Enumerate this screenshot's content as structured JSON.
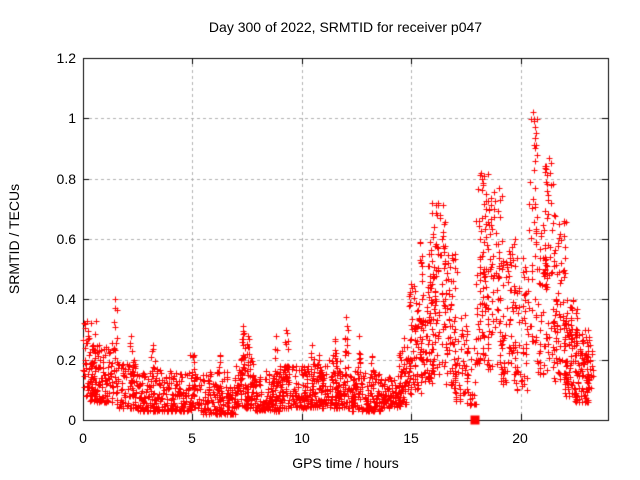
{
  "chart": {
    "title": "Day 300 of 2022, SRMTID for receiver p047",
    "xlabel": "GPS time / hours",
    "ylabel": "SRMTID / TECUs",
    "y_ticks": [
      {
        "value": 0,
        "label": "0"
      },
      {
        "value": 0.2,
        "label": "0.2"
      },
      {
        "value": 0.4,
        "label": "0.4"
      },
      {
        "value": 0.6,
        "label": "0.6"
      },
      {
        "value": 0.8,
        "label": "0.8"
      },
      {
        "value": 1,
        "label": "1"
      },
      {
        "value": 1.2,
        "label": "1.2"
      }
    ],
    "x_ticks": [
      {
        "value": 0,
        "label": "0"
      },
      {
        "value": 5,
        "label": "5"
      },
      {
        "value": 10,
        "label": "10"
      },
      {
        "value": 15,
        "label": "15"
      },
      {
        "value": 20,
        "label": "20"
      }
    ]
  },
  "chart_data": {
    "type": "scatter",
    "title": "Day 300 of 2022, SRMTID for receiver p047",
    "xlabel": "GPS time / hours",
    "ylabel": "SRMTID / TECUs",
    "xlim": [
      0,
      24
    ],
    "ylim": [
      0,
      1.2
    ],
    "x_tick_values": [
      0,
      5,
      10,
      15,
      20
    ],
    "y_tick_values": [
      0,
      0.2,
      0.4,
      0.6,
      0.8,
      1,
      1.2
    ],
    "grid": true,
    "grid_style": "dashed",
    "legend": "none",
    "marker": "plus",
    "marker_size": 7,
    "colors": {
      "marker": "#ff0000",
      "grid": "#b0b0b0",
      "axis": "#000000",
      "background": "#ffffff"
    },
    "time_marker": {
      "shape": "filled-square",
      "x": 17.9,
      "y": 0,
      "size": 9,
      "color": "#ff0000"
    },
    "seed": 300,
    "clusters_format": "[x_start_hour, x_end_hour, point_count, y_min, y_max, bias_exponent_toward_y_min]",
    "clusters": [
      [
        0.0,
        0.6,
        70,
        0.08,
        0.33,
        1.6
      ],
      [
        0.3,
        1.4,
        110,
        0.06,
        0.26,
        1.8
      ],
      [
        1.4,
        1.55,
        14,
        0.12,
        0.4,
        1.0
      ],
      [
        1.5,
        2.5,
        90,
        0.04,
        0.2,
        1.8
      ],
      [
        2.1,
        2.25,
        10,
        0.1,
        0.27,
        1.2
      ],
      [
        2.5,
        4.0,
        140,
        0.03,
        0.17,
        1.7
      ],
      [
        3.1,
        3.3,
        12,
        0.08,
        0.24,
        1.2
      ],
      [
        4.0,
        5.5,
        140,
        0.03,
        0.16,
        1.7
      ],
      [
        4.9,
        5.1,
        10,
        0.08,
        0.22,
        1.2
      ],
      [
        5.5,
        7.0,
        150,
        0.02,
        0.16,
        1.7
      ],
      [
        6.1,
        6.3,
        10,
        0.06,
        0.22,
        1.2
      ],
      [
        7.0,
        7.8,
        90,
        0.04,
        0.22,
        1.5
      ],
      [
        7.25,
        7.4,
        12,
        0.15,
        0.31,
        1.1
      ],
      [
        7.5,
        7.62,
        8,
        0.15,
        0.28,
        1.1
      ],
      [
        7.8,
        9.0,
        120,
        0.03,
        0.17,
        1.7
      ],
      [
        8.7,
        8.9,
        10,
        0.1,
        0.28,
        1.2
      ],
      [
        9.0,
        10.2,
        120,
        0.04,
        0.18,
        1.6
      ],
      [
        9.25,
        9.4,
        10,
        0.12,
        0.3,
        1.1
      ],
      [
        10.2,
        11.2,
        110,
        0.04,
        0.19,
        1.6
      ],
      [
        10.4,
        10.55,
        8,
        0.1,
        0.25,
        1.2
      ],
      [
        10.75,
        10.9,
        8,
        0.1,
        0.24,
        1.2
      ],
      [
        11.2,
        12.3,
        110,
        0.04,
        0.2,
        1.6
      ],
      [
        11.45,
        11.6,
        10,
        0.12,
        0.27,
        1.1
      ],
      [
        11.95,
        12.1,
        10,
        0.15,
        0.33,
        1.1
      ],
      [
        12.3,
        13.6,
        130,
        0.03,
        0.17,
        1.7
      ],
      [
        12.55,
        12.7,
        10,
        0.1,
        0.28,
        1.2
      ],
      [
        13.15,
        13.3,
        8,
        0.08,
        0.22,
        1.2
      ],
      [
        13.6,
        14.5,
        90,
        0.04,
        0.15,
        1.6
      ],
      [
        14.4,
        15.0,
        60,
        0.05,
        0.28,
        1.4
      ],
      [
        14.9,
        15.5,
        70,
        0.08,
        0.45,
        1.3
      ],
      [
        15.4,
        16.0,
        80,
        0.12,
        0.6,
        1.25
      ],
      [
        15.9,
        16.6,
        90,
        0.15,
        0.72,
        1.2
      ],
      [
        16.5,
        17.1,
        70,
        0.1,
        0.55,
        1.3
      ],
      [
        17.0,
        17.6,
        45,
        0.06,
        0.35,
        1.4
      ],
      [
        17.5,
        17.95,
        25,
        0.05,
        0.25,
        1.4
      ],
      [
        17.95,
        18.55,
        85,
        0.18,
        0.82,
        1.15
      ],
      [
        18.5,
        19.2,
        75,
        0.15,
        0.77,
        1.2
      ],
      [
        19.1,
        19.8,
        65,
        0.12,
        0.6,
        1.25
      ],
      [
        19.7,
        20.35,
        55,
        0.1,
        0.55,
        1.3
      ],
      [
        20.35,
        20.75,
        40,
        0.25,
        1.02,
        1.15
      ],
      [
        20.7,
        21.2,
        50,
        0.15,
        0.7,
        1.2
      ],
      [
        21.1,
        21.6,
        55,
        0.18,
        0.87,
        1.2
      ],
      [
        21.5,
        22.1,
        70,
        0.12,
        0.66,
        1.25
      ],
      [
        22.0,
        22.6,
        90,
        0.08,
        0.4,
        1.4
      ],
      [
        22.5,
        23.1,
        80,
        0.06,
        0.3,
        1.4
      ],
      [
        23.0,
        23.35,
        30,
        0.08,
        0.28,
        1.3
      ]
    ],
    "peak_points": [
      [
        0.05,
        0.32
      ],
      [
        1.45,
        0.4
      ],
      [
        1.45,
        0.37
      ],
      [
        2.2,
        0.28
      ],
      [
        3.2,
        0.25
      ],
      [
        7.3,
        0.31
      ],
      [
        7.35,
        0.29
      ],
      [
        7.55,
        0.28
      ],
      [
        8.8,
        0.28
      ],
      [
        9.3,
        0.3
      ],
      [
        10.45,
        0.25
      ],
      [
        11.5,
        0.27
      ],
      [
        12.0,
        0.34
      ],
      [
        12.05,
        0.31
      ],
      [
        12.6,
        0.28
      ],
      [
        15.9,
        0.55
      ],
      [
        16.25,
        0.72
      ],
      [
        16.3,
        0.68
      ],
      [
        16.5,
        0.65
      ],
      [
        17.0,
        0.55
      ],
      [
        18.2,
        0.82
      ],
      [
        18.25,
        0.8
      ],
      [
        18.3,
        0.78
      ],
      [
        18.4,
        0.75
      ],
      [
        19.0,
        0.77
      ],
      [
        19.05,
        0.73
      ],
      [
        20.55,
        1.02
      ],
      [
        20.6,
        0.99
      ],
      [
        20.62,
        0.91
      ],
      [
        20.65,
        0.86
      ],
      [
        21.3,
        0.87
      ],
      [
        21.35,
        0.82
      ],
      [
        21.4,
        0.78
      ],
      [
        22.0,
        0.66
      ]
    ]
  }
}
